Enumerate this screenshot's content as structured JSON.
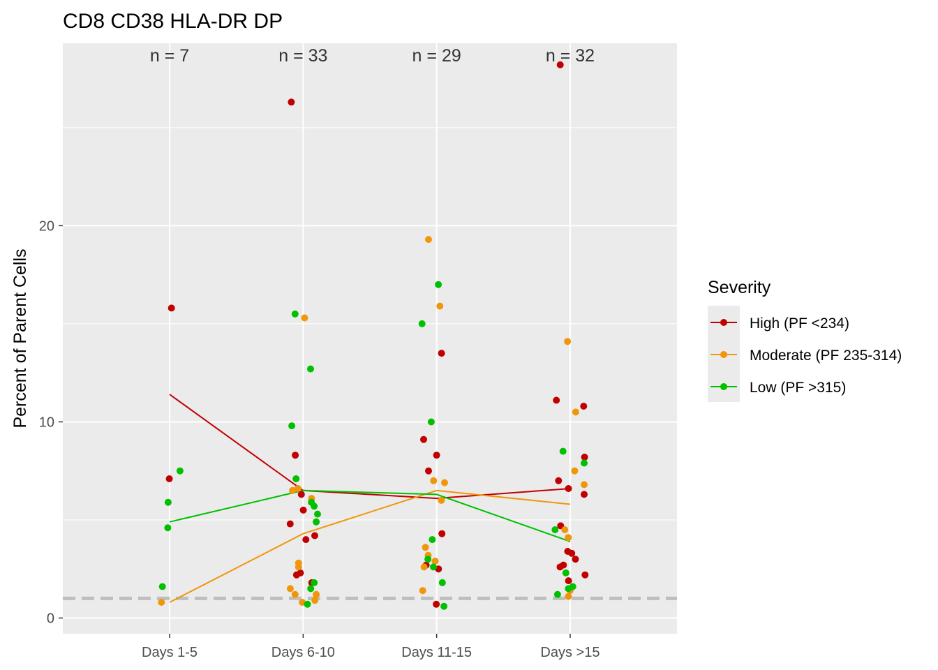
{
  "chart_data": {
    "type": "scatter",
    "title": "CD8 CD38 HLA-DR DP",
    "xlabel": "",
    "ylabel": "Percent of Parent Cells",
    "categories": [
      "Days 1-5",
      "Days 6-10",
      "Days 11-15",
      "Days >15"
    ],
    "group_counts": [
      "n = 7",
      "n = 33",
      "n = 29",
      "n = 32"
    ],
    "yticks": [
      0,
      10,
      20
    ],
    "ylim": [
      -0.8,
      29.3
    ],
    "grid": true,
    "reference_line": 1,
    "legend": {
      "title": "Severity",
      "position": "right"
    },
    "series": [
      {
        "name": "High (PF <234)",
        "color": "#c00000",
        "trend": [
          11.4,
          6.5,
          6.1,
          6.6
        ],
        "points": [
          {
            "x": 0,
            "y": 7.1
          },
          {
            "x": 0,
            "y": 15.8
          },
          {
            "x": 1,
            "y": 26.3
          },
          {
            "x": 1,
            "y": 8.3
          },
          {
            "x": 1,
            "y": 6.3
          },
          {
            "x": 1,
            "y": 5.5
          },
          {
            "x": 1,
            "y": 4.8
          },
          {
            "x": 1,
            "y": 4.2
          },
          {
            "x": 1,
            "y": 4.0
          },
          {
            "x": 1,
            "y": 2.3
          },
          {
            "x": 1,
            "y": 2.2
          },
          {
            "x": 1,
            "y": 1.8
          },
          {
            "x": 2,
            "y": 13.5
          },
          {
            "x": 2,
            "y": 9.1
          },
          {
            "x": 2,
            "y": 8.3
          },
          {
            "x": 2,
            "y": 7.5
          },
          {
            "x": 2,
            "y": 4.3
          },
          {
            "x": 2,
            "y": 2.7
          },
          {
            "x": 2,
            "y": 2.5
          },
          {
            "x": 2,
            "y": 0.7
          },
          {
            "x": 3,
            "y": 28.2
          },
          {
            "x": 3,
            "y": 11.1
          },
          {
            "x": 3,
            "y": 10.8
          },
          {
            "x": 3,
            "y": 8.2
          },
          {
            "x": 3,
            "y": 7.0
          },
          {
            "x": 3,
            "y": 6.6
          },
          {
            "x": 3,
            "y": 6.3
          },
          {
            "x": 3,
            "y": 4.7
          },
          {
            "x": 3,
            "y": 3.4
          },
          {
            "x": 3,
            "y": 3.3
          },
          {
            "x": 3,
            "y": 3.0
          },
          {
            "x": 3,
            "y": 2.7
          },
          {
            "x": 3,
            "y": 2.6
          },
          {
            "x": 3,
            "y": 2.2
          },
          {
            "x": 3,
            "y": 1.9
          }
        ]
      },
      {
        "name": "Moderate (PF 235-314)",
        "color": "#f0960a",
        "trend": [
          0.8,
          4.3,
          6.5,
          5.8
        ],
        "points": [
          {
            "x": 0,
            "y": 0.8
          },
          {
            "x": 1,
            "y": 15.3
          },
          {
            "x": 1,
            "y": 6.6
          },
          {
            "x": 1,
            "y": 6.5
          },
          {
            "x": 1,
            "y": 6.1
          },
          {
            "x": 1,
            "y": 2.8
          },
          {
            "x": 1,
            "y": 2.6
          },
          {
            "x": 1,
            "y": 1.5
          },
          {
            "x": 1,
            "y": 1.2
          },
          {
            "x": 1,
            "y": 1.2
          },
          {
            "x": 1,
            "y": 0.9
          },
          {
            "x": 1,
            "y": 0.8
          },
          {
            "x": 2,
            "y": 19.3
          },
          {
            "x": 2,
            "y": 15.9
          },
          {
            "x": 2,
            "y": 7.0
          },
          {
            "x": 2,
            "y": 6.9
          },
          {
            "x": 2,
            "y": 6.0
          },
          {
            "x": 2,
            "y": 3.6
          },
          {
            "x": 2,
            "y": 3.2
          },
          {
            "x": 2,
            "y": 2.9
          },
          {
            "x": 2,
            "y": 2.6
          },
          {
            "x": 2,
            "y": 1.4
          },
          {
            "x": 3,
            "y": 14.1
          },
          {
            "x": 3,
            "y": 10.5
          },
          {
            "x": 3,
            "y": 7.5
          },
          {
            "x": 3,
            "y": 6.8
          },
          {
            "x": 3,
            "y": 4.5
          },
          {
            "x": 3,
            "y": 4.1
          },
          {
            "x": 3,
            "y": 1.4
          },
          {
            "x": 3,
            "y": 1.1
          }
        ]
      },
      {
        "name": "Low (PF >315)",
        "color": "#00c000",
        "trend": [
          4.9,
          6.5,
          6.3,
          3.9
        ],
        "points": [
          {
            "x": 0,
            "y": 7.5
          },
          {
            "x": 0,
            "y": 5.9
          },
          {
            "x": 0,
            "y": 4.6
          },
          {
            "x": 0,
            "y": 1.6
          },
          {
            "x": 1,
            "y": 15.5
          },
          {
            "x": 1,
            "y": 12.7
          },
          {
            "x": 1,
            "y": 9.8
          },
          {
            "x": 1,
            "y": 7.1
          },
          {
            "x": 1,
            "y": 5.9
          },
          {
            "x": 1,
            "y": 5.7
          },
          {
            "x": 1,
            "y": 5.3
          },
          {
            "x": 1,
            "y": 4.9
          },
          {
            "x": 1,
            "y": 1.8
          },
          {
            "x": 1,
            "y": 1.5
          },
          {
            "x": 1,
            "y": 0.7
          },
          {
            "x": 2,
            "y": 17.0
          },
          {
            "x": 2,
            "y": 15.0
          },
          {
            "x": 2,
            "y": 10.0
          },
          {
            "x": 2,
            "y": 4.0
          },
          {
            "x": 2,
            "y": 3.0
          },
          {
            "x": 2,
            "y": 2.6
          },
          {
            "x": 2,
            "y": 1.8
          },
          {
            "x": 2,
            "y": 0.6
          },
          {
            "x": 3,
            "y": 8.5
          },
          {
            "x": 3,
            "y": 7.9
          },
          {
            "x": 3,
            "y": 4.5
          },
          {
            "x": 3,
            "y": 2.3
          },
          {
            "x": 3,
            "y": 1.6
          },
          {
            "x": 3,
            "y": 1.5
          },
          {
            "x": 3,
            "y": 1.2
          }
        ]
      }
    ]
  }
}
